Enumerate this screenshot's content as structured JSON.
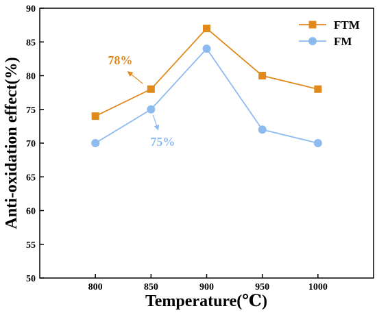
{
  "chart_data": {
    "type": "line",
    "xlabel": "Temperature(℃)",
    "ylabel": "Anti-oxidation effect(%)",
    "x": [
      800,
      850,
      900,
      950,
      1000
    ],
    "x_ticks": [
      "800",
      "850",
      "900",
      "950",
      "1000"
    ],
    "xlim": [
      750,
      1050
    ],
    "ylim": [
      50,
      90
    ],
    "y_ticks": [
      "50",
      "55",
      "60",
      "65",
      "70",
      "75",
      "80",
      "85",
      "90"
    ],
    "grid": false,
    "legend_position": "top-right",
    "series": [
      {
        "name": "FTM",
        "marker": "square",
        "color": "#e08a1e",
        "values": [
          74,
          78,
          87,
          80,
          78
        ]
      },
      {
        "name": "FM",
        "marker": "circle",
        "color": "#8ebbef",
        "values": [
          70,
          75,
          84,
          72,
          70
        ]
      }
    ],
    "annotations": [
      {
        "text": "78%",
        "series": "FTM",
        "x": 850,
        "y": 78,
        "color": "#e08a1e"
      },
      {
        "text": "75%",
        "series": "FM",
        "x": 850,
        "y": 75,
        "color": "#8ebbef"
      }
    ]
  }
}
